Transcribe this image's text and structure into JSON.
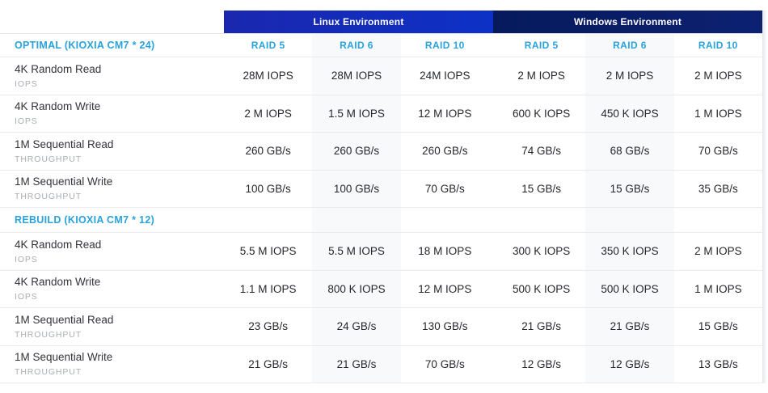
{
  "chart_data": {
    "type": "table",
    "env_groups": [
      {
        "label": "Linux Environment",
        "raid_cols": [
          "RAID 5",
          "RAID 6",
          "RAID 10"
        ]
      },
      {
        "label": "Windows Environment",
        "raid_cols": [
          "RAID 5",
          "RAID 6",
          "RAID 10"
        ]
      }
    ],
    "sections": [
      {
        "label": "OPTIMAL (KIOXIA CM7 * 24)",
        "rows": [
          {
            "metric": "4K Random Read",
            "unit": "IOPS",
            "linux": [
              "28M IOPS",
              "28M IOPS",
              "24M IOPS"
            ],
            "windows": [
              "2 M IOPS",
              "2 M IOPS",
              "2 M IOPS"
            ]
          },
          {
            "metric": "4K Random Write",
            "unit": "IOPS",
            "linux": [
              "2 M IOPS",
              "1.5 M IOPS",
              "12 M IOPS"
            ],
            "windows": [
              "600 K IOPS",
              "450 K IOPS",
              "1 M IOPS"
            ]
          },
          {
            "metric": "1M Sequential Read",
            "unit": "THROUGHPUT",
            "linux": [
              "260 GB/s",
              "260 GB/s",
              "260 GB/s"
            ],
            "windows": [
              "74 GB/s",
              "68 GB/s",
              "70 GB/s"
            ]
          },
          {
            "metric": "1M Sequential Write",
            "unit": "THROUGHPUT",
            "linux": [
              "100 GB/s",
              "100 GB/s",
              "70 GB/s"
            ],
            "windows": [
              "15 GB/s",
              "15 GB/s",
              "35 GB/s"
            ]
          }
        ]
      },
      {
        "label": "REBUILD (KIOXIA CM7 * 12)",
        "rows": [
          {
            "metric": "4K Random Read",
            "unit": "IOPS",
            "linux": [
              "5.5 M IOPS",
              "5.5 M IOPS",
              "18 M IOPS"
            ],
            "windows": [
              "300 K IOPS",
              "350 K IOPS",
              "2 M IOPS"
            ]
          },
          {
            "metric": "4K Random Write",
            "unit": "IOPS",
            "linux": [
              "1.1 M IOPS",
              "800 K IOPS",
              "12 M IOPS"
            ],
            "windows": [
              "500 K IOPS",
              "500 K IOPS",
              "1 M IOPS"
            ]
          },
          {
            "metric": "1M Sequential Read",
            "unit": "THROUGHPUT",
            "linux": [
              "23 GB/s",
              "24 GB/s",
              "130 GB/s"
            ],
            "windows": [
              "21 GB/s",
              "21 GB/s",
              "15 GB/s"
            ]
          },
          {
            "metric": "1M Sequential Write",
            "unit": "THROUGHPUT",
            "linux": [
              "21 GB/s",
              "21 GB/s",
              "70 GB/s"
            ],
            "windows": [
              "12 GB/s",
              "12 GB/s",
              "13 GB/s"
            ]
          }
        ]
      }
    ]
  },
  "colors": {
    "accent_cyan": "#2aa2dc",
    "linux_header_blue_start": "#1a27ae",
    "linux_header_blue_end": "#0d31c6",
    "windows_header_navy_start": "#061a5c",
    "windows_header_navy_end": "#0d2173",
    "column_stripe": "#f7f9fb",
    "divider": "#e9ebee",
    "metric_text": "#33343c",
    "unit_text": "#a9adb4"
  }
}
